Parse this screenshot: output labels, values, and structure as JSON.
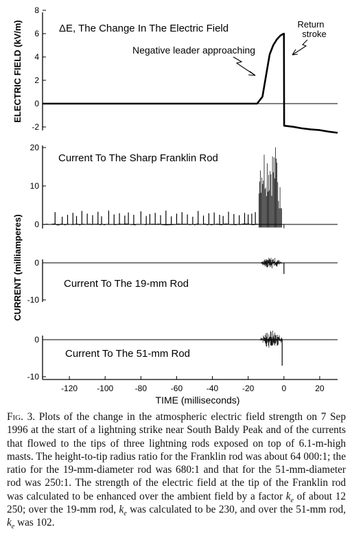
{
  "chart_data": [
    {
      "type": "line",
      "title": "ΔE, The Change In The Electric Field",
      "ylabel": "ELECTRIC FIELD (kV/m)",
      "yticks": [
        "8",
        "6",
        "4",
        "2",
        "0",
        "-2"
      ],
      "ylim": [
        -2.5,
        8
      ],
      "xlim": [
        -135,
        30
      ],
      "annotations": [
        "Negative leader approaching",
        "Return",
        "stroke"
      ],
      "series": [
        {
          "x": [
            -135,
            -15,
            -12,
            -10,
            -8,
            -6,
            -4,
            -2,
            -0.5,
            0,
            0.1,
            5,
            10,
            15,
            20,
            25,
            30
          ],
          "y": [
            0,
            0,
            0.6,
            2.4,
            4.2,
            5.0,
            5.5,
            5.8,
            6.0,
            6.0,
            -1.9,
            -2.0,
            -2.1,
            -2.2,
            -2.3,
            -2.4,
            -2.5
          ]
        }
      ]
    },
    {
      "type": "line",
      "title": "Current To The Sharp Franklin Rod",
      "ylabel": "CURRENT (milliamperes)",
      "yticks": [
        "20",
        "10",
        "0"
      ],
      "ylim": [
        -1,
        22
      ],
      "xlim": [
        -135,
        30
      ],
      "spike_times": [
        -128,
        -124,
        -121,
        -118,
        -116,
        -113,
        -110,
        -107,
        -104,
        -102,
        -98,
        -95,
        -92,
        -89,
        -87,
        -84,
        -80,
        -77,
        -75,
        -72,
        -69,
        -66,
        -63,
        -60,
        -57,
        -54,
        -51,
        -48,
        -45,
        -42,
        -39,
        -36,
        -34,
        -31,
        -28,
        -25,
        -22,
        -20,
        -18,
        -16
      ],
      "spike_heights": [
        3.2,
        2.0,
        2.5,
        3.0,
        2.2,
        3.5,
        2.8,
        2.4,
        3.3,
        2.1,
        3.6,
        2.6,
        2.9,
        2.3,
        3.1,
        2.5,
        3.4,
        2.2,
        2.7,
        3.0,
        2.4,
        3.6,
        2.1,
        2.8,
        3.2,
        2.6,
        2.0,
        3.5,
        2.3,
        2.9,
        3.1,
        2.5,
        2.2,
        3.3,
        2.7,
        2.4,
        3.0,
        2.6,
        2.8,
        3.2
      ],
      "burst": {
        "x_start": -14,
        "x_end": -1,
        "peak": 21
      }
    },
    {
      "type": "line",
      "title": "Current To The 19-mm Rod",
      "yticks": [
        "0",
        "-10"
      ],
      "ylim": [
        -11,
        2
      ],
      "xlim": [
        -135,
        30
      ],
      "burst": {
        "x_start": -13,
        "x_end": -1,
        "peak": 1.5
      }
    },
    {
      "type": "line",
      "title": "Current To The 51-mm Rod",
      "yticks": [
        "0",
        "-10"
      ],
      "ylim": [
        -11,
        2
      ],
      "xlim": [
        -135,
        30
      ],
      "xticks": [
        "-120",
        "-100",
        "-80",
        "-60",
        "-40",
        "-20",
        "0",
        "20"
      ],
      "xtick_values": [
        -120,
        -100,
        -80,
        -60,
        -40,
        -20,
        0,
        20
      ],
      "xlabel": "TIME (milliseconds)",
      "burst": {
        "x_start": -13,
        "x_end": -1,
        "peak": 2
      }
    }
  ],
  "caption": {
    "label": "Fig. 3.",
    "part1": " Plots of the change in the atmospheric electric field strength on 7 Sep 1996 at the start of a lightning strike near South Baldy Peak and of the currents that flowed to the tips of three lightning rods exposed on top of 6.1-m-high masts. The height-to-tip radius ratio for the Franklin rod was about 64 000:1; the ratio for the 19-mm-diameter rod was 680:1 and that for the 51-mm-diameter rod was 250:1. The strength of the electric field at the tip of the Franklin rod was calculated to be enhanced over the ambient field by a factor ",
    "k": "k",
    "e": "e",
    "part2": " of about 12 250; over the 19-mm rod, ",
    "part3": " was calculated to be 230, and over the 51-mm rod, ",
    "part4": " was 102."
  }
}
